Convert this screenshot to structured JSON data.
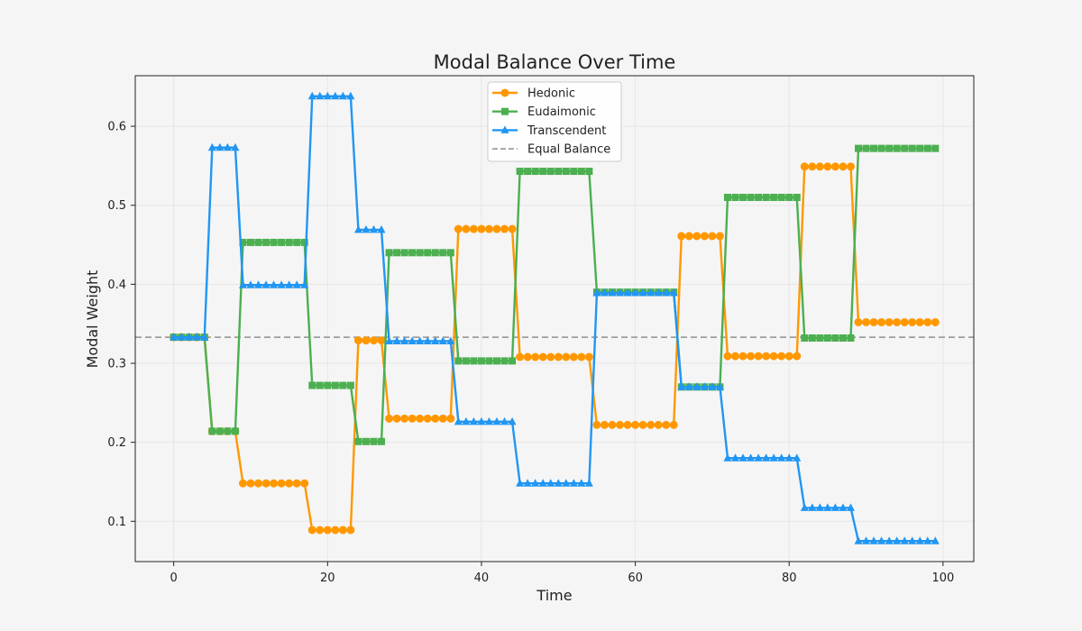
{
  "chart_data": {
    "type": "line",
    "title": "Modal Balance Over Time",
    "xlabel": "Time",
    "ylabel": "Modal Weight",
    "xlim": [
      -5,
      104
    ],
    "ylim": [
      0.049,
      0.664
    ],
    "xticks": [
      0,
      20,
      40,
      60,
      80,
      100
    ],
    "yticks": [
      0.1,
      0.2,
      0.3,
      0.4,
      0.5,
      0.6
    ],
    "grid": true,
    "legend_position": "top-center",
    "x": [
      0,
      1,
      2,
      3,
      4,
      5,
      6,
      7,
      8,
      9,
      10,
      11,
      12,
      13,
      14,
      15,
      16,
      17,
      18,
      19,
      20,
      21,
      22,
      23,
      24,
      25,
      26,
      27,
      28,
      29,
      30,
      31,
      32,
      33,
      34,
      35,
      36,
      37,
      38,
      39,
      40,
      41,
      42,
      43,
      44,
      45,
      46,
      47,
      48,
      49,
      50,
      51,
      52,
      53,
      54,
      55,
      56,
      57,
      58,
      59,
      60,
      61,
      62,
      63,
      64,
      65,
      66,
      67,
      68,
      69,
      70,
      71,
      72,
      73,
      74,
      75,
      76,
      77,
      78,
      79,
      80,
      81,
      82,
      83,
      84,
      85,
      86,
      87,
      88,
      89,
      90,
      91,
      92,
      93,
      94,
      95,
      96,
      97,
      98,
      99
    ],
    "series": [
      {
        "name": "Hedonic",
        "color": "#ff9800",
        "marker": "circle",
        "values": [
          0.333,
          0.333,
          0.333,
          0.333,
          0.333,
          0.214,
          0.214,
          0.214,
          0.214,
          0.148,
          0.148,
          0.148,
          0.148,
          0.148,
          0.148,
          0.148,
          0.148,
          0.148,
          0.089,
          0.089,
          0.089,
          0.089,
          0.089,
          0.089,
          0.329,
          0.329,
          0.329,
          0.329,
          0.23,
          0.23,
          0.23,
          0.23,
          0.23,
          0.23,
          0.23,
          0.23,
          0.23,
          0.47,
          0.47,
          0.47,
          0.47,
          0.47,
          0.47,
          0.47,
          0.47,
          0.308,
          0.308,
          0.308,
          0.308,
          0.308,
          0.308,
          0.308,
          0.308,
          0.308,
          0.308,
          0.222,
          0.222,
          0.222,
          0.222,
          0.222,
          0.222,
          0.222,
          0.222,
          0.222,
          0.222,
          0.222,
          0.461,
          0.461,
          0.461,
          0.461,
          0.461,
          0.461,
          0.309,
          0.309,
          0.309,
          0.309,
          0.309,
          0.309,
          0.309,
          0.309,
          0.309,
          0.309,
          0.549,
          0.549,
          0.549,
          0.549,
          0.549,
          0.549,
          0.549,
          0.352,
          0.352,
          0.352,
          0.352,
          0.352,
          0.352,
          0.352,
          0.352,
          0.352,
          0.352,
          0.352
        ]
      },
      {
        "name": "Eudaimonic",
        "color": "#4caf50",
        "marker": "square",
        "values": [
          0.333,
          0.333,
          0.333,
          0.333,
          0.333,
          0.214,
          0.214,
          0.214,
          0.214,
          0.453,
          0.453,
          0.453,
          0.453,
          0.453,
          0.453,
          0.453,
          0.453,
          0.453,
          0.272,
          0.272,
          0.272,
          0.272,
          0.272,
          0.272,
          0.201,
          0.201,
          0.201,
          0.201,
          0.44,
          0.44,
          0.44,
          0.44,
          0.44,
          0.44,
          0.44,
          0.44,
          0.44,
          0.303,
          0.303,
          0.303,
          0.303,
          0.303,
          0.303,
          0.303,
          0.303,
          0.543,
          0.543,
          0.543,
          0.543,
          0.543,
          0.543,
          0.543,
          0.543,
          0.543,
          0.543,
          0.39,
          0.39,
          0.39,
          0.39,
          0.39,
          0.39,
          0.39,
          0.39,
          0.39,
          0.39,
          0.39,
          0.27,
          0.27,
          0.27,
          0.27,
          0.27,
          0.27,
          0.51,
          0.51,
          0.51,
          0.51,
          0.51,
          0.51,
          0.51,
          0.51,
          0.51,
          0.51,
          0.332,
          0.332,
          0.332,
          0.332,
          0.332,
          0.332,
          0.332,
          0.572,
          0.572,
          0.572,
          0.572,
          0.572,
          0.572,
          0.572,
          0.572,
          0.572,
          0.572,
          0.572
        ]
      },
      {
        "name": "Transcendent",
        "color": "#2196f3",
        "marker": "triangle",
        "values": [
          0.333,
          0.333,
          0.333,
          0.333,
          0.333,
          0.573,
          0.573,
          0.573,
          0.573,
          0.399,
          0.399,
          0.399,
          0.399,
          0.399,
          0.399,
          0.399,
          0.399,
          0.399,
          0.638,
          0.638,
          0.638,
          0.638,
          0.638,
          0.638,
          0.469,
          0.469,
          0.469,
          0.469,
          0.328,
          0.328,
          0.328,
          0.328,
          0.328,
          0.328,
          0.328,
          0.328,
          0.328,
          0.226,
          0.226,
          0.226,
          0.226,
          0.226,
          0.226,
          0.226,
          0.226,
          0.148,
          0.148,
          0.148,
          0.148,
          0.148,
          0.148,
          0.148,
          0.148,
          0.148,
          0.148,
          0.389,
          0.389,
          0.389,
          0.389,
          0.389,
          0.389,
          0.389,
          0.389,
          0.389,
          0.389,
          0.389,
          0.27,
          0.27,
          0.27,
          0.27,
          0.27,
          0.27,
          0.18,
          0.18,
          0.18,
          0.18,
          0.18,
          0.18,
          0.18,
          0.18,
          0.18,
          0.18,
          0.117,
          0.117,
          0.117,
          0.117,
          0.117,
          0.117,
          0.117,
          0.075,
          0.075,
          0.075,
          0.075,
          0.075,
          0.075,
          0.075,
          0.075,
          0.075,
          0.075,
          0.075
        ]
      }
    ],
    "reference_line": {
      "name": "Equal Balance",
      "y": 0.333,
      "color": "#9e9e9e",
      "style": "dashed"
    }
  }
}
